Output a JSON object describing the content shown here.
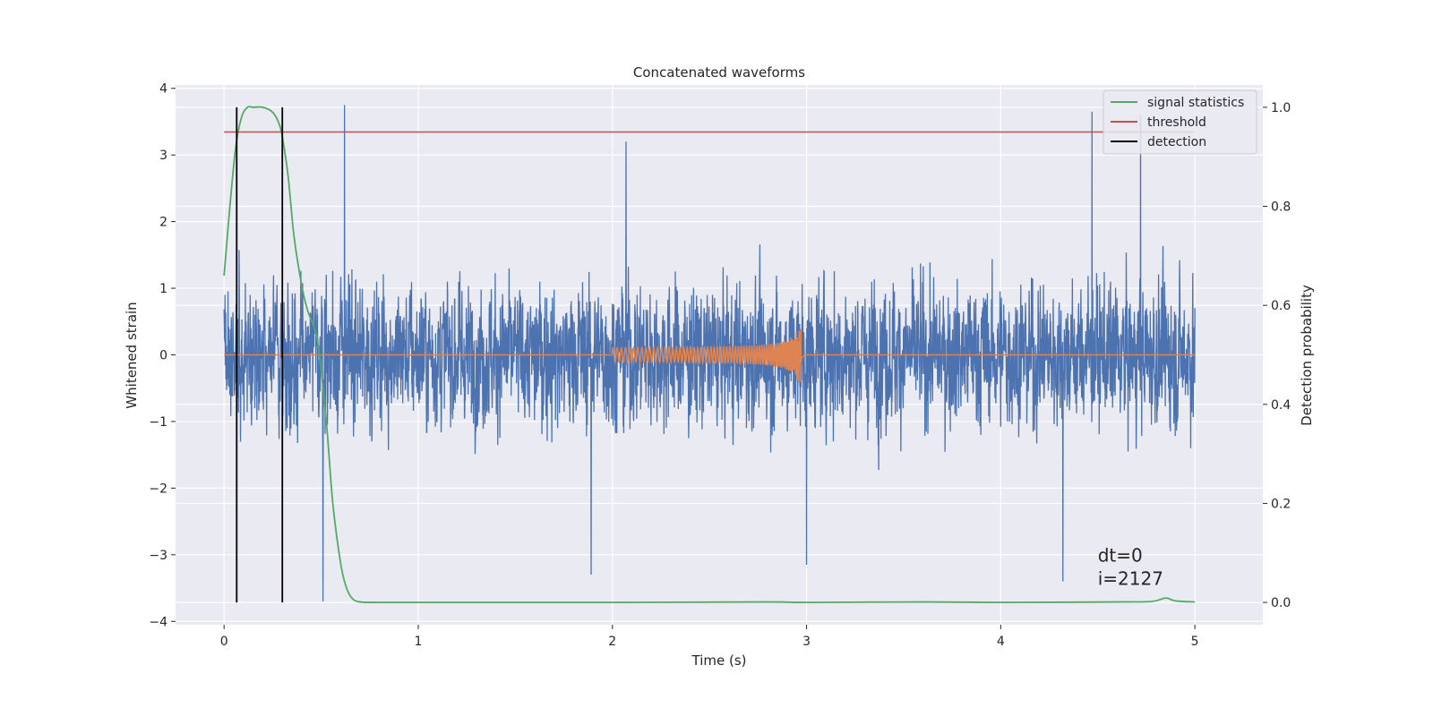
{
  "chart_data": {
    "type": "line",
    "title": "Concatenated waveforms",
    "xlabel": "Time (s)",
    "ylabel": "Whitened strain",
    "ylabel_right": "Detection probability",
    "xlim": [
      -0.25,
      5.35
    ],
    "ylim": [
      -4.05,
      4.05
    ],
    "ylim_right": [
      -0.045,
      1.045
    ],
    "xticks": [
      "0",
      "1",
      "2",
      "3",
      "4",
      "5"
    ],
    "yticks": [
      "−4",
      "−3",
      "−2",
      "−1",
      "0",
      "1",
      "2",
      "3",
      "4"
    ],
    "yticks_right": [
      "0.0",
      "0.2",
      "0.4",
      "0.6",
      "0.8",
      "1.0"
    ],
    "grid": true,
    "legend_position": "top-right",
    "colors": {
      "strain": "#4c72b0",
      "template": "#dd8452",
      "signal_statistics": "#55a868",
      "threshold": "#c44e52",
      "detection": "#000000",
      "plot_background": "#eaeaf2",
      "grid": "#ffffff"
    },
    "legend": [
      {
        "label": "signal statistics",
        "color": "#55a868"
      },
      {
        "label": "threshold",
        "color": "#c44e52"
      },
      {
        "label": "detection",
        "color": "#000000"
      }
    ],
    "series": [
      {
        "key": "strain",
        "axis": "left",
        "x_range": [
          0,
          5
        ],
        "description_stats": {
          "std": 0.75,
          "min": -3.7,
          "max": 3.75
        },
        "spikes": [
          {
            "x": 0.62,
            "y": 3.75
          },
          {
            "x": 0.51,
            "y": -3.7
          },
          {
            "x": 4.47,
            "y": 3.65
          },
          {
            "x": 4.72,
            "y": 3.6
          },
          {
            "x": 4.32,
            "y": -3.4
          },
          {
            "x": 1.89,
            "y": -3.3
          },
          {
            "x": 2.07,
            "y": 3.2
          },
          {
            "x": 3.0,
            "y": -3.15
          }
        ]
      },
      {
        "key": "template",
        "axis": "left",
        "x_range": [
          0,
          5
        ],
        "chirp_start": 2.0,
        "chirp_end": 2.97,
        "start_amplitude": 0.1,
        "peak_amplitude": 0.65
      },
      {
        "key": "signal_statistics",
        "name": "signal statistics",
        "axis": "right",
        "x": [
          0,
          0.03,
          0.06,
          0.09,
          0.12,
          0.15,
          0.2,
          0.25,
          0.28,
          0.3,
          0.33,
          0.36,
          0.4,
          0.43,
          0.46,
          0.48,
          0.5,
          0.53,
          0.56,
          0.6,
          0.63,
          0.66,
          0.7,
          0.8,
          1.0,
          2.0,
          2.8,
          3.0,
          3.6,
          4.0,
          4.6,
          4.78,
          4.85,
          4.9,
          5.0
        ],
        "y": [
          0.66,
          0.8,
          0.92,
          0.98,
          1.0,
          1.0,
          1.0,
          0.99,
          0.97,
          0.94,
          0.86,
          0.74,
          0.64,
          0.59,
          0.56,
          0.53,
          0.47,
          0.35,
          0.2,
          0.08,
          0.03,
          0.008,
          0.001,
          0.0,
          0.0,
          0.0,
          0.001,
          0.0,
          0.001,
          0.0,
          0.001,
          0.002,
          0.009,
          0.003,
          0.001
        ]
      },
      {
        "key": "threshold",
        "name": "threshold",
        "axis": "right",
        "x": [
          0,
          5
        ],
        "y": [
          0.95,
          0.95
        ]
      },
      {
        "key": "detection",
        "name": "detection",
        "axis": "right",
        "vlines": [
          0.065,
          0.3
        ],
        "y_range": [
          0,
          1.0
        ]
      }
    ],
    "annotations": [
      {
        "text": "dt=0",
        "x": 4.5,
        "y": -3.1
      },
      {
        "text": "i=2127",
        "x": 4.5,
        "y": -3.45
      }
    ]
  }
}
